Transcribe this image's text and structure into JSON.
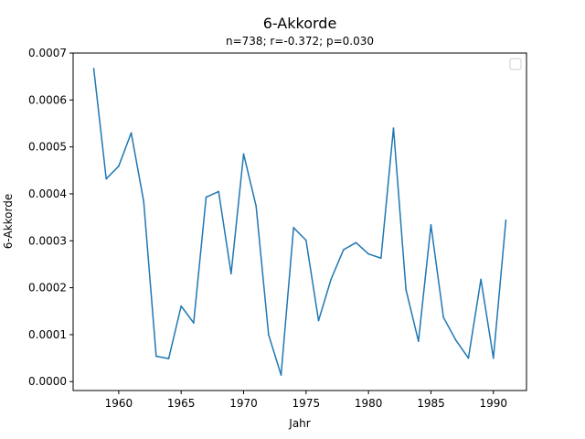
{
  "chart_data": {
    "type": "line",
    "title": "6-Akkorde",
    "subtitle": "n=738; r=-0.372; p=0.030",
    "xlabel": "Jahr",
    "ylabel": "6-Akkorde",
    "xlim": [
      1956.35,
      1992.65
    ],
    "ylim": [
      -1.9e-05,
      0.0007
    ],
    "x_ticks": [
      1960,
      1965,
      1970,
      1975,
      1980,
      1985,
      1990
    ],
    "x_tick_labels": [
      "1960",
      "1965",
      "1970",
      "1975",
      "1980",
      "1985",
      "1990"
    ],
    "y_ticks": [
      0,
      0.0001,
      0.0002,
      0.0003,
      0.0004,
      0.0005,
      0.0006,
      0.0007
    ],
    "y_tick_labels": [
      "0.0000",
      "0.0001",
      "0.0002",
      "0.0003",
      "0.0004",
      "0.0005",
      "0.0006",
      "0.0007"
    ],
    "grid": false,
    "legend": "upper-right, empty",
    "series_color": "#1f77b4",
    "x": [
      1958,
      1959,
      1960,
      1961,
      1962,
      1963,
      1964,
      1965,
      1966,
      1967,
      1968,
      1969,
      1970,
      1971,
      1972,
      1973,
      1974,
      1975,
      1976,
      1977,
      1978,
      1979,
      1980,
      1981,
      1982,
      1983,
      1984,
      1985,
      1986,
      1987,
      1988,
      1989,
      1990,
      1991
    ],
    "y": [
      0.000667,
      0.000432,
      0.000459,
      0.00053,
      0.000384,
      5.4e-05,
      4.9e-05,
      0.000161,
      0.000125,
      0.000393,
      0.000405,
      0.00023,
      0.000485,
      0.000374,
      0.0001,
      1.4e-05,
      0.000328,
      0.000301,
      0.00013,
      0.000218,
      0.000281,
      0.000296,
      0.000272,
      0.000263,
      0.00054,
      0.000196,
      8.6e-05,
      0.000334,
      0.000137,
      8.8e-05,
      5e-05,
      0.000218,
      5e-05,
      0.000344
    ]
  }
}
